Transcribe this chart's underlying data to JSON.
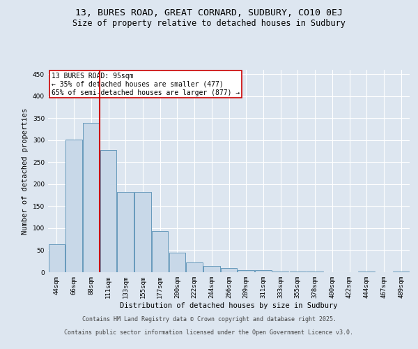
{
  "title_line1": "13, BURES ROAD, GREAT CORNARD, SUDBURY, CO10 0EJ",
  "title_line2": "Size of property relative to detached houses in Sudbury",
  "xlabel": "Distribution of detached houses by size in Sudbury",
  "ylabel": "Number of detached properties",
  "categories": [
    "44sqm",
    "66sqm",
    "88sqm",
    "111sqm",
    "133sqm",
    "155sqm",
    "177sqm",
    "200sqm",
    "222sqm",
    "244sqm",
    "266sqm",
    "289sqm",
    "311sqm",
    "333sqm",
    "355sqm",
    "378sqm",
    "400sqm",
    "422sqm",
    "444sqm",
    "467sqm",
    "489sqm"
  ],
  "values": [
    63,
    301,
    340,
    278,
    183,
    183,
    93,
    45,
    23,
    14,
    9,
    5,
    5,
    2,
    1,
    1,
    0,
    0,
    2,
    0,
    2
  ],
  "bar_color": "#c8d8e8",
  "bar_edge_color": "#6699bb",
  "vline_color": "#cc0000",
  "vline_x_index": 2,
  "annotation_text": "13 BURES ROAD: 95sqm\n← 35% of detached houses are smaller (477)\n65% of semi-detached houses are larger (877) →",
  "annotation_box_facecolor": "#ffffff",
  "annotation_box_edgecolor": "#cc0000",
  "ylim": [
    0,
    460
  ],
  "yticks": [
    0,
    50,
    100,
    150,
    200,
    250,
    300,
    350,
    400,
    450
  ],
  "background_color": "#dde6f0",
  "plot_background": "#dde6f0",
  "grid_color": "#ffffff",
  "footer_line1": "Contains HM Land Registry data © Crown copyright and database right 2025.",
  "footer_line2": "Contains public sector information licensed under the Open Government Licence v3.0.",
  "title_fontsize": 9.5,
  "subtitle_fontsize": 8.5,
  "axis_label_fontsize": 7.5,
  "tick_fontsize": 6.5,
  "annotation_fontsize": 7,
  "footer_fontsize": 6
}
